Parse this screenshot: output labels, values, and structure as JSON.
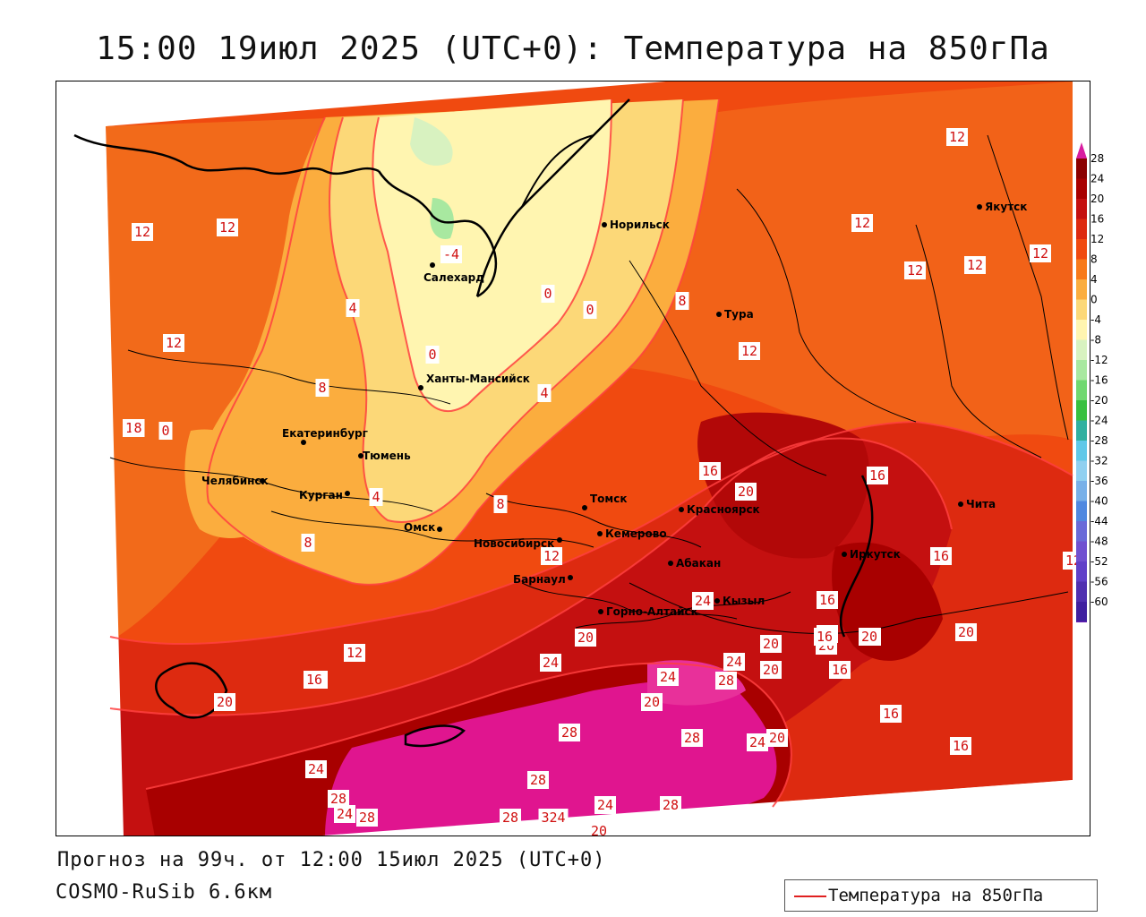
{
  "title": "15:00 19июл 2025 (UTC+0): Температура на 850гПа",
  "footer": {
    "forecast": "Прогноз на 99ч. от 12:00 15июл 2025 (UTC+0)",
    "model": "COSMO-RuSib 6.6км"
  },
  "legend": {
    "label": "Температура на 850гПа",
    "line_color": "#e02020"
  },
  "colorbar": {
    "ticks": [
      "28",
      "24",
      "20",
      "16",
      "12",
      "8",
      "4",
      "0",
      "-4",
      "-8",
      "-12",
      "-16",
      "-20",
      "-24",
      "-28",
      "-32",
      "-36",
      "-40",
      "-44",
      "-48",
      "-52",
      "-56",
      "-60"
    ],
    "colors": [
      "#8b0000",
      "#a80000",
      "#c41010",
      "#dd2a10",
      "#f04a10",
      "#f87a1a",
      "#fbad3e",
      "#fcd878",
      "#fff5b0",
      "#d8f2c0",
      "#a8e8a0",
      "#70d870",
      "#38c040",
      "#30b0a0",
      "#60c8e8",
      "#90d0f0",
      "#78b0e8",
      "#5088e0",
      "#6a6ad8",
      "#7050d0",
      "#6040c8",
      "#5030b0",
      "#4020a0"
    ],
    "max_arrow_color": "#d81ca0",
    "min_arrow_color": "#9018c8"
  },
  "cities": [
    {
      "name": "Норильск"
    },
    {
      "name": "Якутск"
    },
    {
      "name": "Салехард"
    },
    {
      "name": "Тура"
    },
    {
      "name": "Ханты-Мансийск"
    },
    {
      "name": "Екатеринбург"
    },
    {
      "name": "Тюмень"
    },
    {
      "name": "Челябинск"
    },
    {
      "name": "Курган"
    },
    {
      "name": "Омск"
    },
    {
      "name": "Новосибирск"
    },
    {
      "name": "Томск"
    },
    {
      "name": "Кемерово"
    },
    {
      "name": "Красноярск"
    },
    {
      "name": "Барнаул"
    },
    {
      "name": "Абакан"
    },
    {
      "name": "Иркутск"
    },
    {
      "name": "Чита"
    },
    {
      "name": "Кызыл"
    },
    {
      "name": "Горно-Алтайск"
    }
  ],
  "isotherm_labels": [
    "12",
    "12",
    "12",
    "12",
    "12",
    "12",
    "12",
    "12",
    "12",
    "12",
    "12",
    "-4",
    "0",
    "0",
    "0",
    "4",
    "4",
    "4",
    "8",
    "8",
    "8",
    "8",
    "8",
    "0",
    "16",
    "20",
    "16",
    "16",
    "16",
    "20",
    "16",
    "16",
    "16",
    "20",
    "20",
    "20",
    "16",
    "20",
    "24",
    "20",
    "12",
    "16",
    "20",
    "24",
    "24",
    "24",
    "28",
    "20",
    "28",
    "24",
    "20",
    "28",
    "28",
    "24",
    "28",
    "24",
    "28",
    "28",
    "28",
    "24",
    "28",
    "324",
    "20",
    "16",
    "20",
    "16",
    "12"
  ]
}
